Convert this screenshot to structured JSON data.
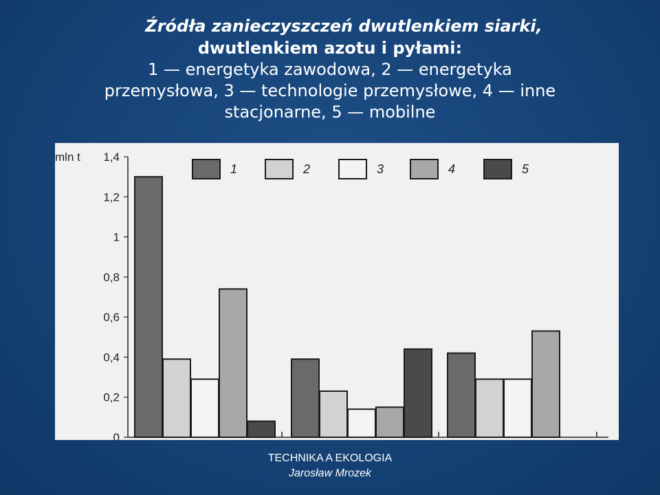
{
  "slide": {
    "title_line1": "Źródła zanieczyszczeń dwutlenkiem siarki,",
    "title_line2": "dwutlenkiem azotu i pyłami:",
    "title_line3": "1 — energetyka zawodowa, 2 — energetyka",
    "title_line4": "przemysłowa, 3 — technologie przemysłowe, 4 — inne",
    "title_line5": "stacjonarne, 5 — mobilne",
    "footer_line1": "TECHNIKA A EKOLOGIA",
    "footer_line2": "Jarosław Mrozek"
  },
  "colors": {
    "background": "#17457a",
    "panel": "#f1f1f1"
  },
  "chart_data": {
    "type": "bar",
    "ylabel": "mln t",
    "ylim": [
      0,
      1.4
    ],
    "yticks": [
      "0",
      "0,2",
      "0,4",
      "0,6",
      "0,8",
      "1",
      "1,2",
      "1,4"
    ],
    "ytick_values": [
      0,
      0.2,
      0.4,
      0.6,
      0.8,
      1.0,
      1.2,
      1.4
    ],
    "categories": [
      "",
      "",
      ""
    ],
    "legend_position": "top",
    "series": [
      {
        "name": "1",
        "values": [
          1.3,
          0.39,
          0.42
        ],
        "color": "#6a6a6a"
      },
      {
        "name": "2",
        "values": [
          0.39,
          0.23,
          0.29
        ],
        "color": "#d2d2d2"
      },
      {
        "name": "3",
        "values": [
          0.29,
          0.14,
          0.29
        ],
        "color": "#f4f4f4"
      },
      {
        "name": "4",
        "values": [
          0.74,
          0.15,
          0.53
        ],
        "color": "#a8a8a8"
      },
      {
        "name": "5",
        "values": [
          0.08,
          0.44,
          null
        ],
        "color": "#4a4a4a"
      }
    ]
  }
}
